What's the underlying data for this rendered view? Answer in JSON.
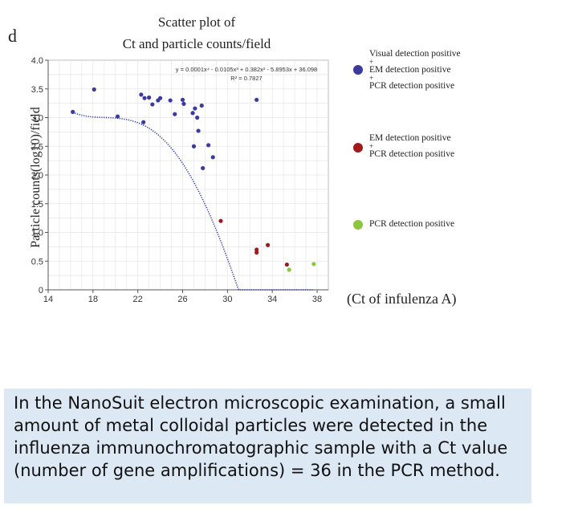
{
  "panel_letter": "d",
  "caption": "In the NanoSuit electron microscopic examination, a small amount of metal colloidal particles were detected in the influenza immunochromatographic sample with a Ct value (number of gene amplifications) = 36 in the PCR method.",
  "colors": {
    "visual_em_pcr": "#3a3aa0",
    "em_pcr": "#a11a1a",
    "pcr": "#8cc63f",
    "trend": "#2a3db0",
    "caption_bg": "#dde8f5"
  },
  "legend": [
    {
      "lines": [
        "Visual detection positive",
        "EM detection positive",
        "PCR detection positive"
      ],
      "color": "#3a3aa0"
    },
    {
      "lines": [
        "EM detection positive",
        "PCR detection positive"
      ],
      "color": "#a11a1a"
    },
    {
      "lines": [
        "PCR detection positive"
      ],
      "color": "#8cc63f"
    }
  ],
  "chart_data": {
    "type": "scatter",
    "title": "Scatter plot of\nCt and particle counts/field",
    "title_lines": [
      "Scatter plot of",
      "Ct and particle counts/field"
    ],
    "xlabel": "(Ct of infulenza A)",
    "ylabel": "Particle counts(log10)/field",
    "xlim": [
      14,
      39
    ],
    "ylim": [
      0,
      4.0
    ],
    "x_ticks": [
      14,
      18,
      22,
      26,
      30,
      34,
      38
    ],
    "y_ticks": [
      0,
      0.5,
      1.0,
      1.5,
      2.0,
      2.5,
      3.0,
      3.5,
      4.0
    ],
    "y_tick_labels": [
      "0",
      "0.5",
      "1.0",
      "1.5",
      "2.0",
      "2.5",
      "3.0",
      "3.5",
      "4.0"
    ],
    "grid": true,
    "equation": "y = 0.0001x⁴ - 0.0105x³ + 0.382x² - 5.8953x + 36.098",
    "r_squared": "R² = 0.7827",
    "trend_coefficients": [
      0.0001,
      -0.0105,
      0.382,
      -5.8953,
      36.098
    ],
    "series": [
      {
        "name": "Visual detection positive + EM detection positive + PCR detection positive",
        "color": "#3a3aa0",
        "points": [
          [
            16.2,
            3.1
          ],
          [
            18.1,
            3.49
          ],
          [
            20.2,
            3.02
          ],
          [
            22.3,
            3.4
          ],
          [
            22.5,
            2.92
          ],
          [
            22.6,
            3.34
          ],
          [
            23.0,
            3.35
          ],
          [
            23.3,
            3.23
          ],
          [
            23.8,
            3.3
          ],
          [
            24.0,
            3.34
          ],
          [
            24.9,
            3.3
          ],
          [
            25.3,
            3.06
          ],
          [
            26.0,
            3.31
          ],
          [
            26.1,
            3.24
          ],
          [
            26.9,
            3.08
          ],
          [
            27.1,
            3.16
          ],
          [
            27.3,
            3.0
          ],
          [
            27.7,
            3.21
          ],
          [
            27.0,
            2.5
          ],
          [
            27.4,
            2.77
          ],
          [
            27.8,
            2.12
          ],
          [
            28.3,
            2.52
          ],
          [
            28.7,
            2.31
          ],
          [
            32.6,
            3.31
          ]
        ]
      },
      {
        "name": "EM detection positive + PCR detection positive",
        "color": "#a11a1a",
        "points": [
          [
            29.4,
            1.2
          ],
          [
            32.6,
            0.7
          ],
          [
            32.6,
            0.65
          ],
          [
            33.6,
            0.78
          ],
          [
            35.3,
            0.44
          ]
        ]
      },
      {
        "name": "PCR detection positive",
        "color": "#8cc63f",
        "points": [
          [
            35.5,
            0.35
          ],
          [
            37.7,
            0.45
          ]
        ]
      }
    ]
  }
}
